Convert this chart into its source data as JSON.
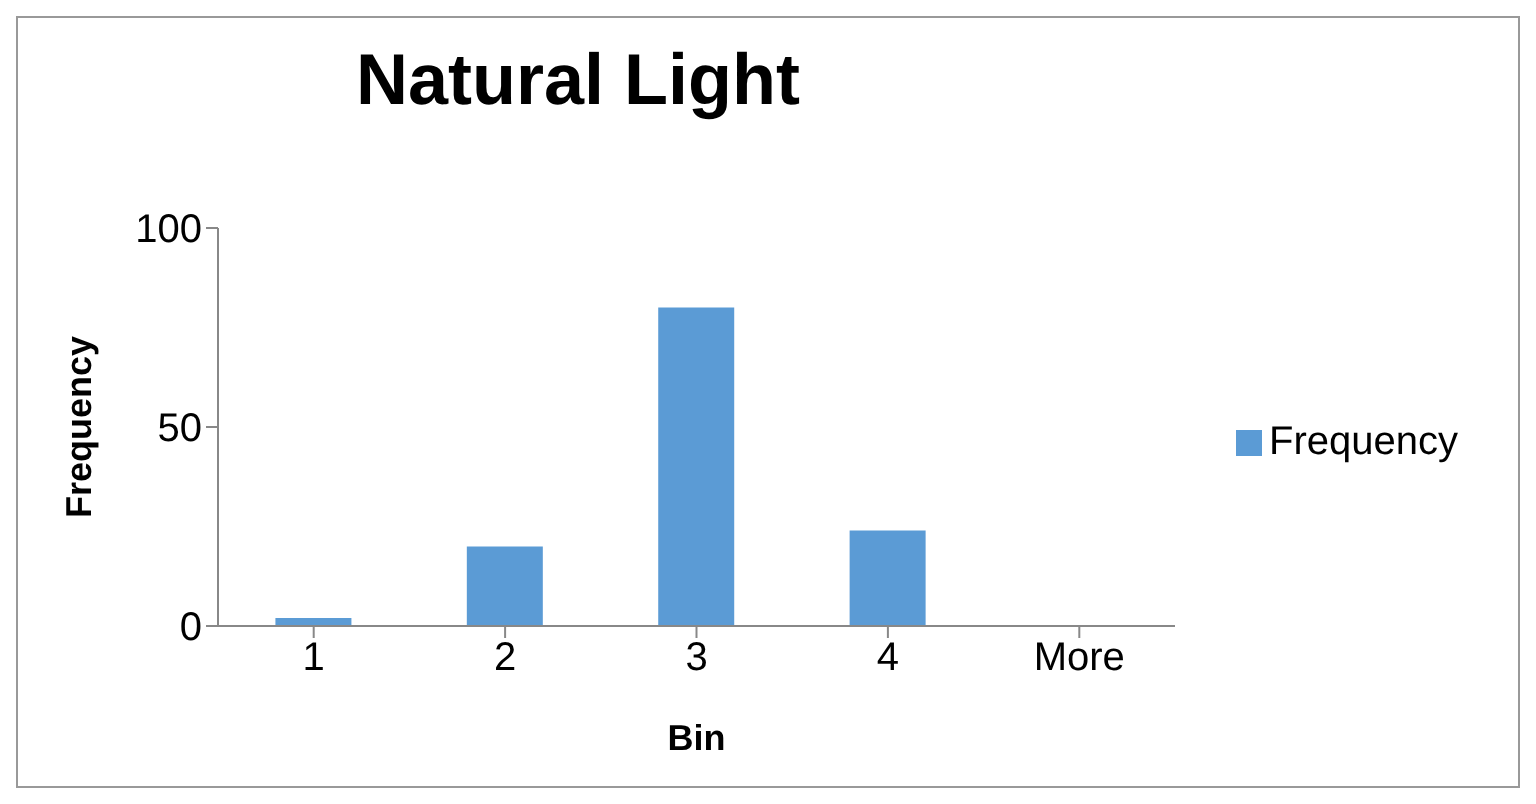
{
  "chart_data": {
    "type": "bar",
    "title": "Natural Light",
    "xlabel": "Bin",
    "ylabel": "Frequency",
    "categories": [
      "1",
      "2",
      "3",
      "4",
      "More"
    ],
    "series": [
      {
        "name": "Frequency",
        "color": "#5b9bd5",
        "values": [
          2,
          20,
          80,
          24,
          0
        ]
      }
    ],
    "ylim": [
      0,
      100
    ],
    "yticks": [
      0,
      50,
      100
    ],
    "grid": false,
    "legend": "right"
  }
}
